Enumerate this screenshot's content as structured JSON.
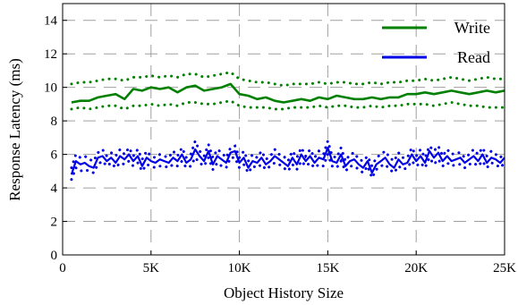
{
  "chart_data": {
    "type": "line",
    "title": "",
    "xlabel": "Object History Size",
    "ylabel": "Response Latency (ms)",
    "xlim": [
      0,
      25000
    ],
    "ylim": [
      0,
      15
    ],
    "xticks": [
      0,
      5000,
      10000,
      15000,
      20000,
      25000
    ],
    "xtick_labels": [
      "0",
      "5K",
      "10K",
      "15K",
      "20K",
      "25K"
    ],
    "yticks": [
      0,
      2,
      4,
      6,
      8,
      10,
      12,
      14
    ],
    "ytick_labels": [
      "0",
      "2",
      "4",
      "6",
      "8",
      "10",
      "12",
      "14"
    ],
    "grid": true,
    "legend_position": "top-right",
    "series": [
      {
        "name": "Write",
        "color": "#008000",
        "x": [
          500,
          1000,
          1500,
          2000,
          2500,
          3000,
          3500,
          4000,
          4500,
          5000,
          5500,
          6000,
          6500,
          7000,
          7500,
          8000,
          8500,
          9000,
          9500,
          10000,
          10500,
          11000,
          11500,
          12000,
          12500,
          13000,
          13500,
          14000,
          14500,
          15000,
          15500,
          16000,
          16500,
          17000,
          17500,
          18000,
          18500,
          19000,
          19500,
          20000,
          20500,
          21000,
          21500,
          22000,
          22500,
          23000,
          23500,
          24000,
          24500,
          25000
        ],
        "values": [
          9.1,
          9.2,
          9.2,
          9.4,
          9.5,
          9.6,
          9.3,
          9.9,
          9.8,
          10.0,
          9.9,
          10.0,
          9.7,
          10.0,
          10.1,
          9.8,
          9.9,
          10.0,
          10.2,
          9.6,
          9.5,
          9.3,
          9.4,
          9.2,
          9.1,
          9.2,
          9.3,
          9.2,
          9.4,
          9.3,
          9.5,
          9.4,
          9.3,
          9.3,
          9.4,
          9.3,
          9.4,
          9.4,
          9.6,
          9.6,
          9.7,
          9.6,
          9.7,
          9.8,
          9.7,
          9.6,
          9.7,
          9.8,
          9.7,
          9.8
        ],
        "upper": [
          10.2,
          10.3,
          10.3,
          10.4,
          10.5,
          10.5,
          10.4,
          10.6,
          10.6,
          10.7,
          10.6,
          10.7,
          10.6,
          10.8,
          10.8,
          10.6,
          10.7,
          10.8,
          10.9,
          10.5,
          10.4,
          10.3,
          10.3,
          10.2,
          10.1,
          10.2,
          10.2,
          10.2,
          10.3,
          10.2,
          10.3,
          10.3,
          10.2,
          10.2,
          10.3,
          10.2,
          10.3,
          10.3,
          10.4,
          10.4,
          10.5,
          10.4,
          10.5,
          10.6,
          10.5,
          10.4,
          10.5,
          10.6,
          10.5,
          10.5
        ],
        "lower": [
          8.7,
          8.8,
          8.7,
          8.8,
          8.9,
          8.9,
          8.7,
          8.9,
          8.9,
          9.0,
          8.9,
          9.0,
          8.9,
          9.1,
          9.1,
          9.0,
          9.0,
          9.1,
          9.2,
          8.9,
          8.8,
          8.8,
          8.8,
          8.7,
          8.7,
          8.8,
          8.8,
          8.8,
          8.9,
          8.8,
          8.9,
          8.9,
          8.8,
          8.8,
          8.9,
          8.8,
          8.9,
          8.9,
          9.0,
          9.0,
          9.0,
          8.9,
          9.0,
          9.1,
          9.0,
          8.9,
          8.9,
          8.8,
          8.8,
          8.8
        ]
      },
      {
        "name": "Read",
        "color": "#0000e6",
        "x": [
          500,
          750,
          1000,
          1250,
          1500,
          1750,
          2000,
          2250,
          2500,
          2750,
          3000,
          3250,
          3500,
          3750,
          4000,
          4250,
          4500,
          4750,
          5000,
          5250,
          5500,
          5750,
          6000,
          6250,
          6500,
          6750,
          7000,
          7250,
          7500,
          7750,
          8000,
          8250,
          8500,
          8750,
          9000,
          9250,
          9500,
          9750,
          10000,
          10250,
          10500,
          10750,
          11000,
          11250,
          11500,
          11750,
          12000,
          12250,
          12500,
          12750,
          13000,
          13250,
          13500,
          13750,
          14000,
          14250,
          14500,
          14750,
          15000,
          15250,
          15500,
          15750,
          16000,
          16250,
          16500,
          16750,
          17000,
          17250,
          17500,
          17750,
          18000,
          18250,
          18500,
          18750,
          19000,
          19250,
          19500,
          19750,
          20000,
          20250,
          20500,
          20750,
          21000,
          21250,
          21500,
          21750,
          22000,
          22250,
          22500,
          22750,
          23000,
          23250,
          23500,
          23750,
          24000,
          24250,
          24500,
          24750,
          25000
        ],
        "values": [
          4.8,
          5.6,
          5.4,
          5.5,
          5.3,
          5.2,
          5.8,
          5.9,
          5.6,
          5.8,
          5.5,
          5.9,
          5.7,
          6.0,
          5.6,
          5.9,
          5.3,
          5.8,
          5.6,
          5.5,
          5.7,
          5.6,
          5.5,
          5.8,
          5.6,
          6.0,
          5.5,
          5.7,
          6.3,
          5.9,
          5.6,
          6.2,
          5.4,
          5.9,
          5.7,
          5.5,
          6.1,
          6.2,
          5.5,
          5.8,
          5.2,
          5.6,
          5.5,
          5.8,
          5.4,
          5.6,
          5.9,
          5.7,
          5.5,
          5.3,
          5.8,
          5.4,
          6.0,
          5.6,
          5.9,
          5.5,
          5.8,
          5.7,
          6.4,
          5.6,
          5.5,
          6.0,
          5.3,
          5.6,
          5.7,
          5.4,
          5.2,
          5.6,
          4.9,
          5.4,
          5.6,
          5.8,
          5.4,
          5.2,
          5.7,
          5.4,
          5.5,
          6.0,
          5.6,
          5.9,
          5.5,
          6.2,
          5.8,
          6.1,
          5.6,
          5.9,
          5.6,
          5.7,
          5.8,
          5.5,
          5.7,
          5.9,
          5.6,
          6.0,
          5.5,
          5.8,
          5.7,
          5.5,
          5.8
        ],
        "upper": [
          5.2,
          6.0,
          5.8,
          5.9,
          5.7,
          5.6,
          6.1,
          6.3,
          5.9,
          6.1,
          5.9,
          6.3,
          6.0,
          6.4,
          5.9,
          6.3,
          5.7,
          6.2,
          5.9,
          5.8,
          6.0,
          5.9,
          5.8,
          6.2,
          5.9,
          6.4,
          5.8,
          6.0,
          6.8,
          6.2,
          5.9,
          6.6,
          5.8,
          6.3,
          6.1,
          5.8,
          6.4,
          6.5,
          5.8,
          6.2,
          5.6,
          6.0,
          5.8,
          6.2,
          5.7,
          5.9,
          6.3,
          6.0,
          5.9,
          5.6,
          6.2,
          5.8,
          6.4,
          5.9,
          6.3,
          5.8,
          6.2,
          6.0,
          6.8,
          5.9,
          5.8,
          6.4,
          5.6,
          6.0,
          6.1,
          5.7,
          5.6,
          5.9,
          5.3,
          5.8,
          6.0,
          6.2,
          5.8,
          5.6,
          6.1,
          5.8,
          5.8,
          6.4,
          5.9,
          6.3,
          5.8,
          6.5,
          6.2,
          6.5,
          5.9,
          6.3,
          6.0,
          6.1,
          6.1,
          5.8,
          6.0,
          6.3,
          6.0,
          6.4,
          5.9,
          6.2,
          6.0,
          5.8,
          6.1
        ],
        "lower": [
          4.5,
          5.2,
          5.0,
          5.1,
          5.0,
          4.9,
          5.4,
          5.6,
          5.3,
          5.5,
          5.2,
          5.5,
          5.4,
          5.6,
          5.3,
          5.5,
          5.0,
          5.4,
          5.3,
          5.2,
          5.3,
          5.3,
          5.2,
          5.4,
          5.3,
          5.6,
          5.2,
          5.3,
          5.8,
          5.5,
          5.3,
          5.8,
          5.1,
          5.5,
          5.3,
          5.2,
          5.8,
          5.8,
          5.2,
          5.4,
          4.9,
          5.3,
          5.2,
          5.4,
          5.1,
          5.3,
          5.5,
          5.4,
          5.2,
          5.0,
          5.4,
          5.1,
          5.6,
          5.3,
          5.5,
          5.2,
          5.4,
          5.3,
          6.0,
          5.3,
          5.2,
          5.6,
          5.0,
          5.3,
          5.3,
          5.1,
          4.9,
          5.3,
          4.6,
          5.1,
          5.3,
          5.4,
          5.1,
          4.9,
          5.3,
          5.1,
          5.2,
          5.6,
          5.3,
          5.5,
          5.2,
          5.8,
          5.4,
          5.7,
          5.3,
          5.5,
          5.3,
          5.4,
          5.4,
          5.2,
          5.4,
          5.5,
          5.3,
          5.6,
          5.2,
          5.5,
          5.4,
          5.2,
          5.5
        ]
      }
    ]
  }
}
